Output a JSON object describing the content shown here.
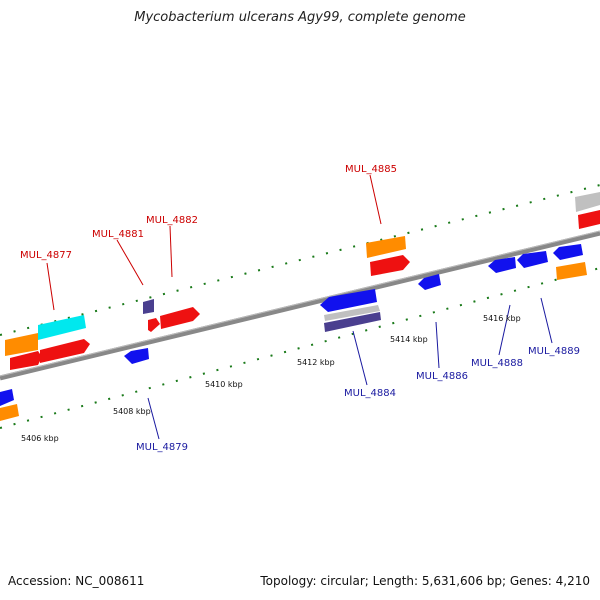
{
  "title": "Mycobacterium ulcerans Agy99, complete genome",
  "footer": {
    "accession": "Accession: NC_008611",
    "topology": "Topology: circular; Length: 5,631,606 bp; Genes: 4,210"
  },
  "colors": {
    "forward_gene": "#ee1111",
    "reverse_gene": "#1111ee",
    "orange_feature": "#ff8c00",
    "cyan_feature": "#00e8ee",
    "gray_feature": "#c0c0c0",
    "purple_feature": "#4a3f8f",
    "tick": "#1a7a1a",
    "backbone": "#777777",
    "label_forward": "#cc0000",
    "label_reverse": "#1a1aa0"
  },
  "ruler_labels": [
    "5406 kbp",
    "5408 kbp",
    "5410 kbp",
    "5412 kbp",
    "5414 kbp",
    "5416 kbp"
  ],
  "gene_labels_forward": [
    "MUL_4877",
    "MUL_4881",
    "MUL_4882",
    "MUL_4885"
  ],
  "gene_labels_reverse": [
    "MUL_4879",
    "MUL_4884",
    "MUL_4886",
    "MUL_4888",
    "MUL_4889"
  ]
}
